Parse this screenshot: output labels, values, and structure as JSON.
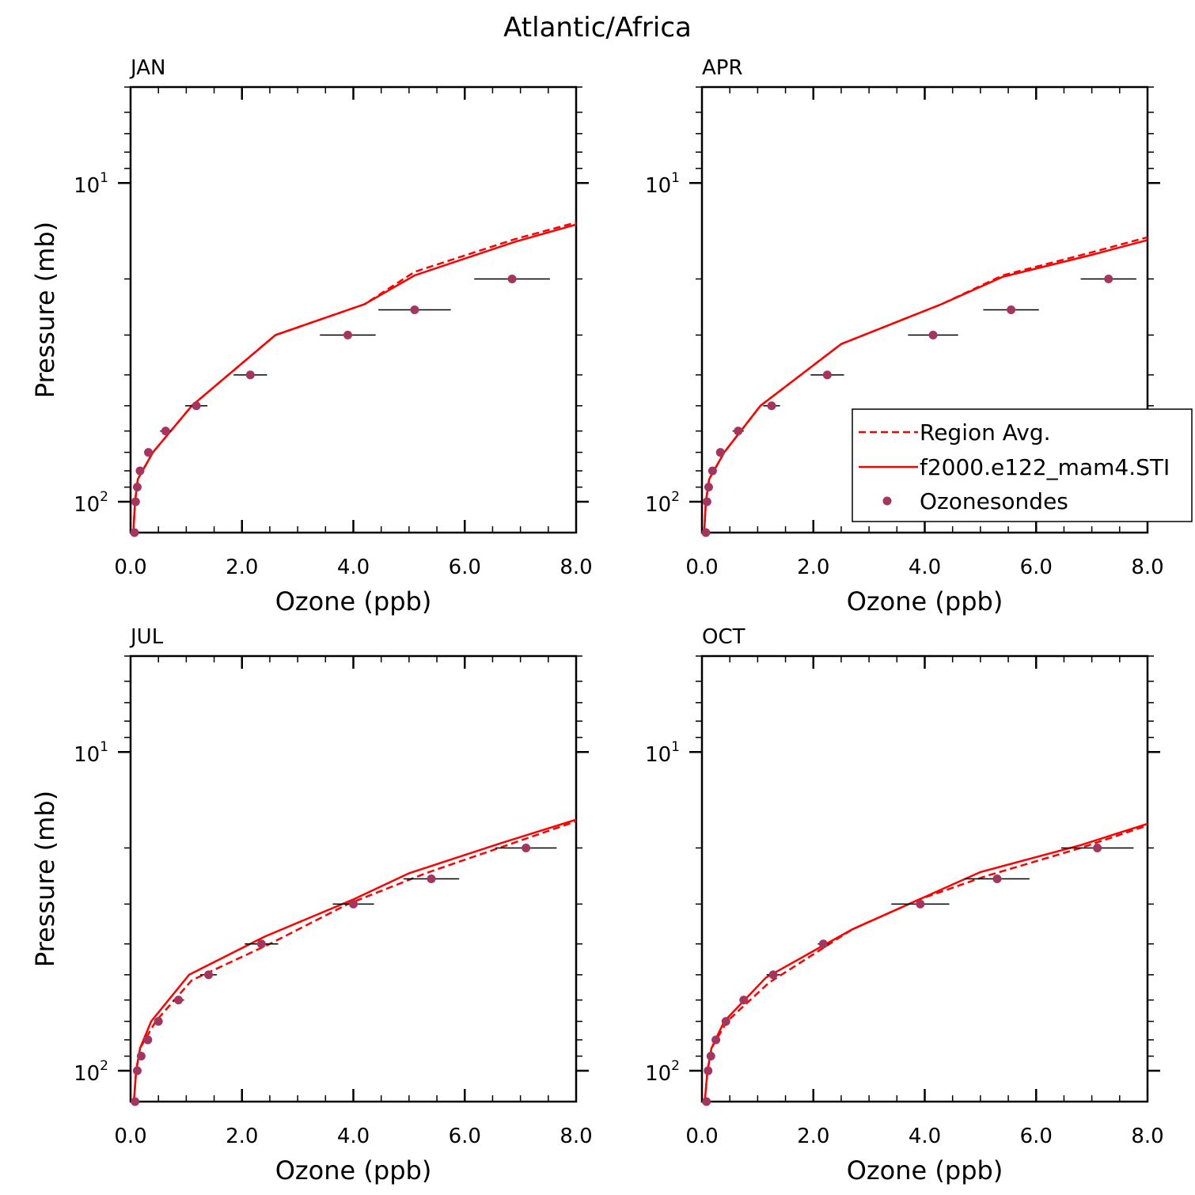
{
  "figure": {
    "title": "Atlantic/Africa"
  },
  "legend": {
    "entries": [
      {
        "label": "Region Avg.",
        "style": "dashed",
        "color": "#ff0000"
      },
      {
        "label": "f2000.e122_mam4.STI",
        "style": "solid",
        "color": "#ff0000"
      },
      {
        "label": "Ozonesondes",
        "style": "marker",
        "color": "#a5355f"
      }
    ]
  },
  "chart_data": [
    {
      "type": "line",
      "title": "JAN",
      "xlabel": "Ozone (ppb)",
      "ylabel": "Pressure (mb)",
      "xlim": [
        0,
        8
      ],
      "ylim": [
        125,
        5
      ],
      "yscale": "log",
      "xticks": [
        "0.0",
        "2.0",
        "4.0",
        "6.0",
        "8.0"
      ],
      "yticks": [
        {
          "base": "10",
          "exp": "1"
        },
        {
          "base": "10",
          "exp": "2"
        }
      ],
      "series": [
        {
          "name": "Region Avg.",
          "style": "dashed",
          "points": [
            [
              0.05,
              125
            ],
            [
              0.08,
              100
            ],
            [
              0.13,
              85
            ],
            [
              0.4,
              70
            ],
            [
              1.1,
              50
            ],
            [
              2.6,
              30
            ],
            [
              4.2,
              24
            ],
            [
              5.1,
              19
            ],
            [
              6.9,
              15
            ],
            [
              8.0,
              13.3
            ]
          ]
        },
        {
          "name": "f2000.e122_mam4.STI",
          "style": "solid",
          "points": [
            [
              0.05,
              125
            ],
            [
              0.08,
              100
            ],
            [
              0.13,
              85
            ],
            [
              0.4,
              70
            ],
            [
              1.1,
              50
            ],
            [
              2.6,
              30
            ],
            [
              4.2,
              24
            ],
            [
              5.1,
              19.5
            ],
            [
              6.9,
              15.3
            ],
            [
              8.0,
              13.5
            ]
          ]
        },
        {
          "name": "Ozonesondes",
          "style": "marker",
          "points": [
            [
              0.07,
              125
            ],
            [
              0.09,
              100
            ],
            [
              0.12,
              90
            ],
            [
              0.17,
              80
            ],
            [
              0.32,
              70
            ],
            [
              0.63,
              60
            ],
            [
              1.18,
              50
            ],
            [
              2.15,
              40
            ],
            [
              3.9,
              30
            ],
            [
              5.1,
              25
            ],
            [
              6.85,
              20
            ]
          ],
          "xerr": [
            0,
            0,
            0,
            0,
            0.04,
            0.1,
            0.2,
            0.3,
            0.5,
            0.65,
            0.68
          ]
        }
      ]
    },
    {
      "type": "line",
      "title": "APR",
      "xlabel": "Ozone (ppb)",
      "ylabel": "",
      "xlim": [
        0,
        8
      ],
      "ylim": [
        125,
        5
      ],
      "yscale": "log",
      "xticks": [
        "0.0",
        "2.0",
        "4.0",
        "6.0",
        "8.0"
      ],
      "yticks": [
        {
          "base": "10",
          "exp": "1"
        },
        {
          "base": "10",
          "exp": "2"
        }
      ],
      "series": [
        {
          "name": "Region Avg.",
          "style": "dashed",
          "points": [
            [
              0.04,
              125
            ],
            [
              0.07,
              100
            ],
            [
              0.13,
              85
            ],
            [
              0.4,
              70
            ],
            [
              1.05,
              50
            ],
            [
              2.5,
              32
            ],
            [
              4.3,
              24
            ],
            [
              5.4,
              19.5
            ],
            [
              7.0,
              16.5
            ],
            [
              8.0,
              14.8
            ]
          ]
        },
        {
          "name": "f2000.e122_mam4.STI",
          "style": "solid",
          "points": [
            [
              0.04,
              125
            ],
            [
              0.07,
              100
            ],
            [
              0.13,
              85
            ],
            [
              0.4,
              70
            ],
            [
              1.05,
              50
            ],
            [
              2.5,
              32
            ],
            [
              4.3,
              24
            ],
            [
              5.4,
              19.7
            ],
            [
              7.0,
              16.8
            ],
            [
              8.0,
              15.1
            ]
          ]
        },
        {
          "name": "Ozonesondes",
          "style": "marker",
          "points": [
            [
              0.07,
              125
            ],
            [
              0.09,
              100
            ],
            [
              0.12,
              90
            ],
            [
              0.19,
              80
            ],
            [
              0.33,
              70
            ],
            [
              0.65,
              60
            ],
            [
              1.25,
              50
            ],
            [
              2.25,
              40
            ],
            [
              4.15,
              30
            ],
            [
              5.55,
              25
            ],
            [
              7.3,
              20
            ]
          ],
          "xerr": [
            0,
            0,
            0,
            0,
            0.04,
            0.1,
            0.15,
            0.3,
            0.45,
            0.5,
            0.5
          ]
        }
      ]
    },
    {
      "type": "line",
      "title": "JUL",
      "xlabel": "Ozone (ppb)",
      "ylabel": "Pressure (mb)",
      "xlim": [
        0,
        8
      ],
      "ylim": [
        125,
        5
      ],
      "yscale": "log",
      "xticks": [
        "0.0",
        "2.0",
        "4.0",
        "6.0",
        "8.0"
      ],
      "yticks": [
        {
          "base": "10",
          "exp": "1"
        },
        {
          "base": "10",
          "exp": "2"
        }
      ],
      "series": [
        {
          "name": "Region Avg.",
          "style": "dashed",
          "points": [
            [
              0.06,
              125
            ],
            [
              0.1,
              100
            ],
            [
              0.17,
              85
            ],
            [
              0.45,
              70
            ],
            [
              1.1,
              52
            ],
            [
              2.5,
              40
            ],
            [
              3.9,
              30
            ],
            [
              5.3,
              24
            ],
            [
              6.8,
              19.5
            ],
            [
              8.0,
              16.5
            ]
          ]
        },
        {
          "name": "f2000.e122_mam4.STI",
          "style": "solid",
          "points": [
            [
              0.06,
              125
            ],
            [
              0.1,
              100
            ],
            [
              0.17,
              85
            ],
            [
              0.37,
              70
            ],
            [
              1.05,
              50
            ],
            [
              2.4,
              38
            ],
            [
              4.0,
              29
            ],
            [
              5.0,
              24
            ],
            [
              6.7,
              19.2
            ],
            [
              8.0,
              16.3
            ]
          ]
        },
        {
          "name": "Ozonesondes",
          "style": "marker",
          "points": [
            [
              0.08,
              125
            ],
            [
              0.12,
              100
            ],
            [
              0.19,
              90
            ],
            [
              0.31,
              80
            ],
            [
              0.5,
              70
            ],
            [
              0.86,
              60
            ],
            [
              1.4,
              50
            ],
            [
              2.35,
              40
            ],
            [
              4.0,
              30
            ],
            [
              5.4,
              25
            ],
            [
              7.1,
              20
            ]
          ],
          "xerr": [
            0,
            0,
            0,
            0,
            0.05,
            0.1,
            0.15,
            0.3,
            0.37,
            0.5,
            0.55
          ]
        }
      ]
    },
    {
      "type": "line",
      "title": "OCT",
      "xlabel": "Ozone (ppb)",
      "ylabel": "",
      "xlim": [
        0,
        8
      ],
      "ylim": [
        125,
        5
      ],
      "yscale": "log",
      "xticks": [
        "0.0",
        "2.0",
        "4.0",
        "6.0",
        "8.0"
      ],
      "yticks": [
        {
          "base": "10",
          "exp": "1"
        },
        {
          "base": "10",
          "exp": "2"
        }
      ],
      "series": [
        {
          "name": "Region Avg.",
          "style": "dashed",
          "points": [
            [
              0.05,
              125
            ],
            [
              0.1,
              100
            ],
            [
              0.17,
              85
            ],
            [
              0.45,
              70
            ],
            [
              1.2,
              53
            ],
            [
              2.7,
              36
            ],
            [
              3.9,
              29
            ],
            [
              5.1,
              24.5
            ],
            [
              6.8,
              20
            ],
            [
              8.0,
              17
            ]
          ]
        },
        {
          "name": "f2000.e122_mam4.STI",
          "style": "solid",
          "points": [
            [
              0.05,
              125
            ],
            [
              0.1,
              100
            ],
            [
              0.17,
              85
            ],
            [
              0.4,
              70
            ],
            [
              1.15,
              51
            ],
            [
              2.7,
              36
            ],
            [
              4.0,
              28.5
            ],
            [
              5.0,
              23.8
            ],
            [
              6.8,
              19.6
            ],
            [
              8.0,
              16.8
            ]
          ]
        },
        {
          "name": "Ozonesondes",
          "style": "marker",
          "points": [
            [
              0.08,
              125
            ],
            [
              0.11,
              100
            ],
            [
              0.16,
              90
            ],
            [
              0.25,
              80
            ],
            [
              0.43,
              70
            ],
            [
              0.75,
              60
            ],
            [
              1.28,
              50
            ],
            [
              2.18,
              40
            ],
            [
              3.92,
              30
            ],
            [
              5.3,
              25
            ],
            [
              7.1,
              20
            ]
          ],
          "xerr": [
            0,
            0,
            0,
            0,
            0.05,
            0.05,
            0.12,
            0.1,
            0.52,
            0.58,
            0.65
          ]
        }
      ]
    }
  ]
}
